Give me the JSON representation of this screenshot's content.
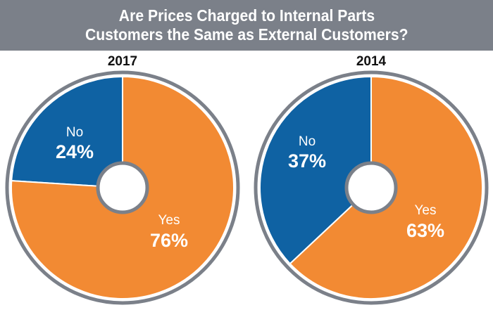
{
  "title": {
    "line1": "Are Prices Charged to Internal Parts",
    "line2": "Customers the Same as External Customers?"
  },
  "colors": {
    "header_bg": "#7b8089",
    "yes": "#f28a33",
    "no": "#0f62a3",
    "ring": "#7b8089"
  },
  "chart_data": [
    {
      "type": "pie",
      "title": "2017",
      "categories": [
        "No",
        "Yes"
      ],
      "values": [
        24,
        76
      ],
      "labels": [
        "24%",
        "76%"
      ],
      "colors": [
        "#0f62a3",
        "#f28a33"
      ]
    },
    {
      "type": "pie",
      "title": "2014",
      "categories": [
        "No",
        "Yes"
      ],
      "values": [
        37,
        63
      ],
      "labels": [
        "37%",
        "63%"
      ],
      "colors": [
        "#0f62a3",
        "#f28a33"
      ]
    }
  ]
}
